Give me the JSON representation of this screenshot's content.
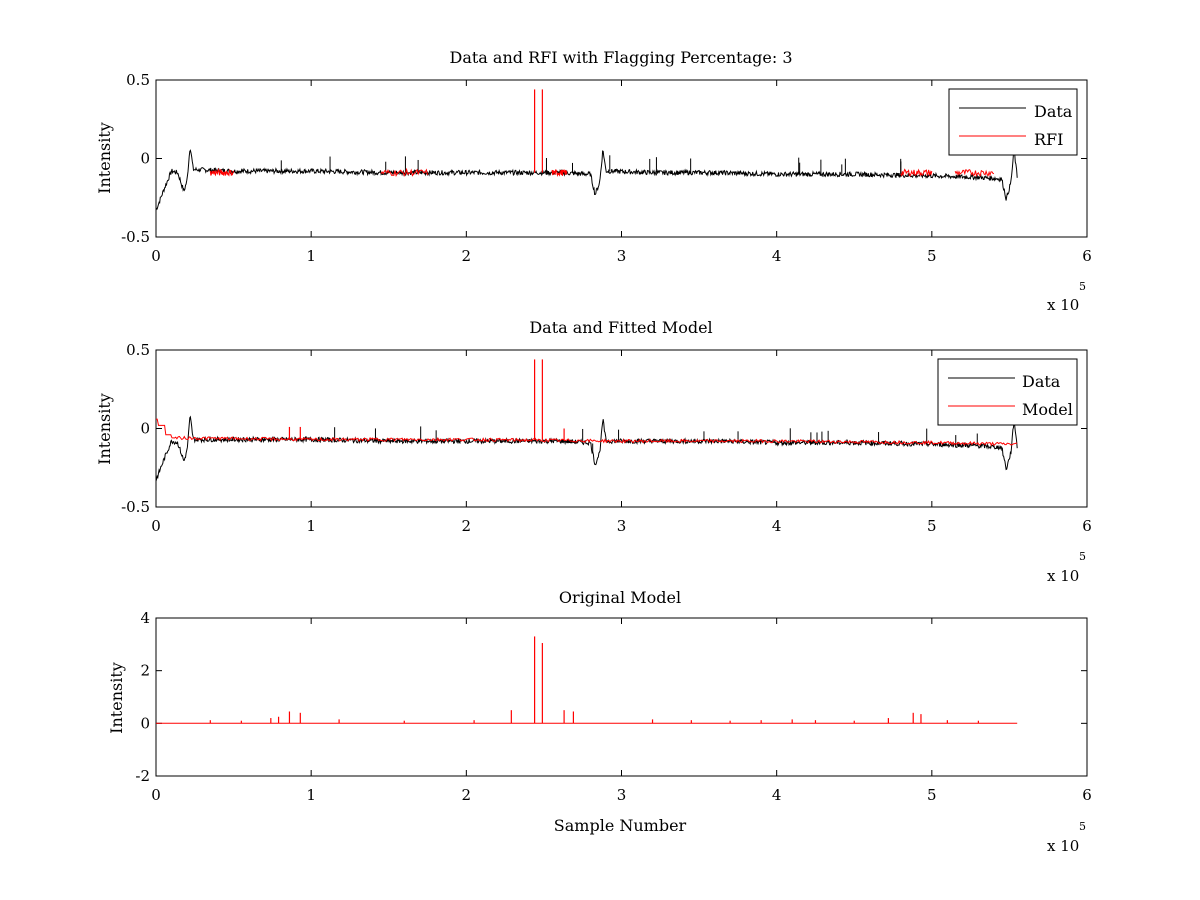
{
  "chart_data": [
    {
      "type": "line",
      "title": "Data and RFI with Flagging Percentage: 3",
      "xlabel": "",
      "ylabel": "Intensity",
      "xlim": [
        0,
        6
      ],
      "ylim": [
        -0.5,
        0.5
      ],
      "x_ticks": [
        "0",
        "1",
        "2",
        "3",
        "4",
        "5",
        "6"
      ],
      "y_ticks": [
        "-0.5",
        "0",
        "0.5"
      ],
      "x_multiplier": "x 10",
      "x_exponent": "5",
      "legend_position": "top-right",
      "series": [
        {
          "name": "Data",
          "color": "#000000",
          "x": [
            0,
            0.05,
            0.1,
            0.14,
            0.18,
            0.2,
            0.22,
            0.24,
            0.5,
            1.0,
            1.5,
            2.0,
            2.3,
            2.6,
            2.8,
            2.83,
            2.86,
            2.88,
            2.9,
            3.2,
            3.6,
            4.0,
            4.5,
            5.0,
            5.3,
            5.45,
            5.48,
            5.51,
            5.53,
            5.55
          ],
          "values": [
            -0.33,
            -0.2,
            -0.08,
            -0.09,
            -0.21,
            -0.14,
            0.08,
            -0.07,
            -0.08,
            -0.08,
            -0.09,
            -0.09,
            -0.09,
            -0.09,
            -0.1,
            -0.23,
            -0.15,
            0.06,
            -0.08,
            -0.09,
            -0.09,
            -0.1,
            -0.1,
            -0.11,
            -0.12,
            -0.13,
            -0.26,
            -0.15,
            0.06,
            -0.12
          ]
        },
        {
          "name": "RFI",
          "color": "#ff0000",
          "spikes": [
            {
              "x": 2.44,
              "y": 0.44
            },
            {
              "x": 2.49,
              "y": 0.44
            }
          ],
          "segments": [
            [
              0.35,
              0.5
            ],
            [
              1.45,
              1.75
            ],
            [
              2.55,
              2.65
            ],
            [
              4.8,
              5.0
            ],
            [
              5.15,
              5.4
            ]
          ],
          "baseline": -0.09
        }
      ]
    },
    {
      "type": "line",
      "title": "Data and Fitted Model",
      "xlabel": "",
      "ylabel": "Intensity",
      "xlim": [
        0,
        6
      ],
      "ylim": [
        -0.5,
        0.5
      ],
      "x_ticks": [
        "0",
        "1",
        "2",
        "3",
        "4",
        "5",
        "6"
      ],
      "y_ticks": [
        "-0.5",
        "0",
        "0.5"
      ],
      "x_multiplier": "x 10",
      "x_exponent": "5",
      "legend_position": "top-right",
      "series": [
        {
          "name": "Data",
          "color": "#000000",
          "x": [
            0,
            0.05,
            0.1,
            0.14,
            0.18,
            0.2,
            0.22,
            0.24,
            0.5,
            1.0,
            1.5,
            2.0,
            2.3,
            2.6,
            2.8,
            2.83,
            2.86,
            2.88,
            2.9,
            3.2,
            3.6,
            4.0,
            4.5,
            5.0,
            5.3,
            5.45,
            5.48,
            5.51,
            5.53,
            5.55
          ],
          "values": [
            -0.33,
            -0.2,
            -0.08,
            -0.09,
            -0.21,
            -0.14,
            0.08,
            -0.07,
            -0.07,
            -0.07,
            -0.08,
            -0.08,
            -0.08,
            -0.08,
            -0.09,
            -0.23,
            -0.15,
            0.06,
            -0.08,
            -0.08,
            -0.08,
            -0.09,
            -0.09,
            -0.1,
            -0.11,
            -0.12,
            -0.26,
            -0.15,
            0.06,
            -0.12
          ]
        },
        {
          "name": "Model",
          "color": "#ff0000",
          "x": [
            0,
            0.01,
            0.01,
            0.06,
            0.06,
            0.1,
            0.1,
            1.0,
            2.0,
            3.0,
            4.0,
            5.0,
            5.55
          ],
          "values": [
            0.06,
            0.06,
            0.02,
            0.02,
            -0.04,
            -0.04,
            -0.06,
            -0.07,
            -0.07,
            -0.08,
            -0.08,
            -0.09,
            -0.1
          ],
          "spikes": [
            {
              "x": 2.44,
              "y": 0.44
            },
            {
              "x": 2.49,
              "y": 0.44
            },
            {
              "x": 2.63,
              "y": 0.0
            },
            {
              "x": 0.86,
              "y": 0.01
            },
            {
              "x": 0.93,
              "y": 0.01
            }
          ]
        }
      ]
    },
    {
      "type": "line",
      "title": "Original Model",
      "xlabel": "Sample Number",
      "ylabel": "Intensity",
      "xlim": [
        0,
        6
      ],
      "ylim": [
        -2,
        4
      ],
      "x_ticks": [
        "0",
        "1",
        "2",
        "3",
        "4",
        "5",
        "6"
      ],
      "y_ticks": [
        "-2",
        "0",
        "2",
        "4"
      ],
      "x_multiplier": "x 10",
      "x_exponent": "5",
      "series": [
        {
          "name": "Original Model",
          "color": "#ff0000",
          "x": [
            0,
            5.55
          ],
          "values": [
            0,
            0
          ],
          "spikes": [
            {
              "x": 2.44,
              "y": 3.3
            },
            {
              "x": 2.49,
              "y": 3.05
            },
            {
              "x": 2.63,
              "y": 0.5
            },
            {
              "x": 2.69,
              "y": 0.45
            },
            {
              "x": 0.86,
              "y": 0.45
            },
            {
              "x": 0.93,
              "y": 0.4
            },
            {
              "x": 2.29,
              "y": 0.5
            },
            {
              "x": 4.88,
              "y": 0.4
            },
            {
              "x": 4.93,
              "y": 0.35
            },
            {
              "x": 0.74,
              "y": 0.2
            },
            {
              "x": 0.79,
              "y": 0.25
            },
            {
              "x": 0.35,
              "y": 0.12
            },
            {
              "x": 0.55,
              "y": 0.1
            },
            {
              "x": 1.18,
              "y": 0.15
            },
            {
              "x": 1.6,
              "y": 0.1
            },
            {
              "x": 2.05,
              "y": 0.12
            },
            {
              "x": 3.2,
              "y": 0.15
            },
            {
              "x": 3.45,
              "y": 0.12
            },
            {
              "x": 3.7,
              "y": 0.1
            },
            {
              "x": 3.9,
              "y": 0.12
            },
            {
              "x": 4.1,
              "y": 0.15
            },
            {
              "x": 4.25,
              "y": 0.12
            },
            {
              "x": 4.5,
              "y": 0.1
            },
            {
              "x": 4.72,
              "y": 0.2
            },
            {
              "x": 5.1,
              "y": 0.12
            },
            {
              "x": 5.3,
              "y": 0.1
            }
          ]
        }
      ]
    }
  ]
}
